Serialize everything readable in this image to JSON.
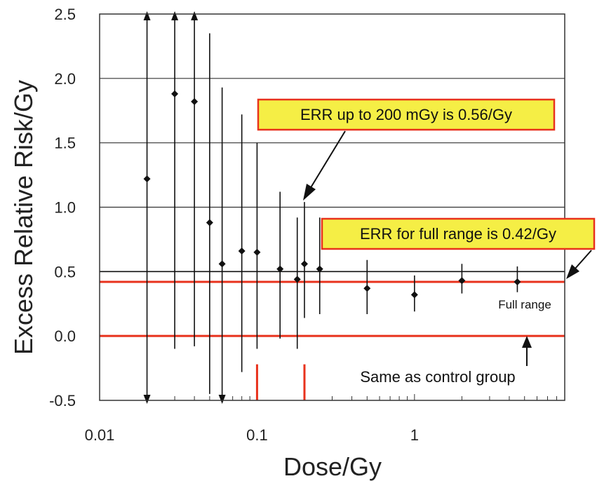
{
  "chart_data": {
    "type": "scatter",
    "title": "",
    "xlabel": "Dose/Gy",
    "ylabel": "Excess Relative Risk/Gy",
    "x_scale": "log",
    "xlim": [
      0.01,
      9.0
    ],
    "ylim": [
      -0.5,
      2.5
    ],
    "x_ticks": [
      {
        "value": 0.01,
        "label": "0.01"
      },
      {
        "value": 0.1,
        "label": "0.1"
      },
      {
        "value": 1,
        "label": "1"
      }
    ],
    "y_ticks": [
      {
        "value": 2.5,
        "label": "2.5"
      },
      {
        "value": 2.0,
        "label": "2.0"
      },
      {
        "value": 1.5,
        "label": "1.5"
      },
      {
        "value": 1.0,
        "label": "1.0"
      },
      {
        "value": 0.5,
        "label": "0.5"
      },
      {
        "value": 0.0,
        "label": "0.0"
      },
      {
        "value": -0.5,
        "label": "-0.5"
      }
    ],
    "grid": {
      "horizontal": true,
      "vertical": false
    },
    "points": [
      {
        "x": 0.02,
        "y": 1.22,
        "lo": -0.5,
        "hi": 2.5,
        "clip_lo": true,
        "clip_hi": true
      },
      {
        "x": 0.03,
        "y": 1.88,
        "lo": -0.1,
        "hi": 2.5,
        "clip_lo": false,
        "clip_hi": true
      },
      {
        "x": 0.04,
        "y": 1.82,
        "lo": -0.08,
        "hi": 2.5,
        "clip_lo": false,
        "clip_hi": true
      },
      {
        "x": 0.05,
        "y": 0.88,
        "lo": -0.45,
        "hi": 2.35,
        "clip_lo": false,
        "clip_hi": false
      },
      {
        "x": 0.06,
        "y": 0.56,
        "lo": -0.5,
        "hi": 1.93,
        "clip_lo": true,
        "clip_hi": false
      },
      {
        "x": 0.08,
        "y": 0.66,
        "lo": -0.28,
        "hi": 1.72,
        "clip_lo": false,
        "clip_hi": false
      },
      {
        "x": 0.1,
        "y": 0.65,
        "lo": -0.1,
        "hi": 1.5,
        "clip_lo": false,
        "clip_hi": false
      },
      {
        "x": 0.14,
        "y": 0.52,
        "lo": -0.02,
        "hi": 1.12,
        "clip_lo": false,
        "clip_hi": false
      },
      {
        "x": 0.18,
        "y": 0.44,
        "lo": -0.1,
        "hi": 0.92,
        "clip_lo": false,
        "clip_hi": false
      },
      {
        "x": 0.2,
        "y": 0.56,
        "lo": 0.14,
        "hi": 1.04,
        "clip_lo": false,
        "clip_hi": false
      },
      {
        "x": 0.25,
        "y": 0.52,
        "lo": 0.17,
        "hi": 0.92,
        "clip_lo": false,
        "clip_hi": false
      },
      {
        "x": 0.5,
        "y": 0.37,
        "lo": 0.17,
        "hi": 0.59,
        "clip_lo": false,
        "clip_hi": false
      },
      {
        "x": 1.0,
        "y": 0.32,
        "lo": 0.19,
        "hi": 0.47,
        "clip_lo": false,
        "clip_hi": false
      },
      {
        "x": 2.0,
        "y": 0.43,
        "lo": 0.33,
        "hi": 0.56,
        "clip_lo": false,
        "clip_hi": false
      },
      {
        "x": 4.5,
        "y": 0.42,
        "lo": 0.34,
        "hi": 0.54,
        "clip_lo": false,
        "clip_hi": false
      }
    ],
    "reference_lines": [
      {
        "y": 0.5,
        "color": "#111111"
      },
      {
        "y": 0.42,
        "color": "#e8321c"
      },
      {
        "y": 0.0,
        "color": "#e8321c"
      }
    ],
    "dose_markers": [
      {
        "x": 0.1,
        "from": -0.5,
        "to": -0.22,
        "color": "#e8321c"
      },
      {
        "x": 0.2,
        "from": -0.5,
        "to": -0.22,
        "color": "#e8321c"
      }
    ],
    "annotations": [
      {
        "text": "ERR up to 200 mGy is 0.56/Gy",
        "style": "callout"
      },
      {
        "text": "ERR for full range is 0.42/Gy",
        "style": "callout"
      },
      {
        "text": "Full range",
        "style": "note"
      },
      {
        "text": "Same as control group",
        "style": "note"
      }
    ],
    "colors": {
      "reference_red": "#e8321c",
      "callout_fill": "#f5ee45",
      "callout_border": "#e8321c"
    }
  }
}
